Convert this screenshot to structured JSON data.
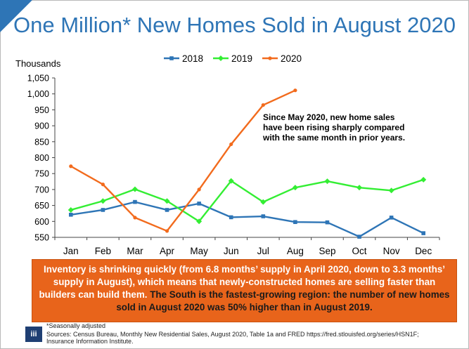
{
  "title": "One Million* New Homes Sold in August 2020",
  "y_unit_label": "Thousands",
  "chart_data": {
    "type": "line",
    "categories": [
      "Jan",
      "Feb",
      "Mar",
      "Apr",
      "May",
      "Jun",
      "Jul",
      "Aug",
      "Sep",
      "Oct",
      "Nov",
      "Dec"
    ],
    "ylim": [
      550,
      1050
    ],
    "y_ticks": [
      "550",
      "600",
      "650",
      "700",
      "750",
      "800",
      "850",
      "900",
      "950",
      "1,000",
      "1,050"
    ],
    "y_tick_values": [
      550,
      600,
      650,
      700,
      750,
      800,
      850,
      900,
      950,
      1000,
      1050
    ],
    "series": [
      {
        "name": "2018",
        "color": "#2e75b6",
        "marker": "square",
        "values": [
          621,
          636,
          661,
          636,
          656,
          613,
          616,
          598,
          597,
          552,
          612,
          563
        ]
      },
      {
        "name": "2019",
        "color": "#33ee33",
        "marker": "diamond",
        "values": [
          636,
          664,
          701,
          664,
          600,
          727,
          661,
          706,
          726,
          706,
          697,
          731
        ]
      },
      {
        "name": "2020",
        "color": "#f26b1d",
        "marker": "circle",
        "values": [
          773,
          716,
          612,
          570,
          700,
          842,
          965,
          1011,
          null,
          null,
          null,
          null
        ]
      }
    ],
    "annotation": {
      "lines": [
        "Since May 2020, new home sales",
        "have been rising sharply compared",
        "with the same month in prior years."
      ]
    },
    "legend": "top"
  },
  "callout": {
    "white_text": "Inventory is shrinking quickly (from 6.8 months’ supply in April 2020, down to 3.3 months’ supply in August), which means that newly-constructed homes are selling faster than builders can build them.",
    "dark_text": "The South is the fastest-growing region: the number of new homes sold in August 2020 was 50% higher than in August 2019."
  },
  "logo_text": "iii",
  "footnote": "*Seasonally adjusted",
  "sources_line1": "Sources: Census Bureau, Monthly New Residential Sales, August 2020, Table 1a and FRED https://fred.stlouisfed.org/series/HSN1F;",
  "sources_line2": "Insurance Information Institute."
}
